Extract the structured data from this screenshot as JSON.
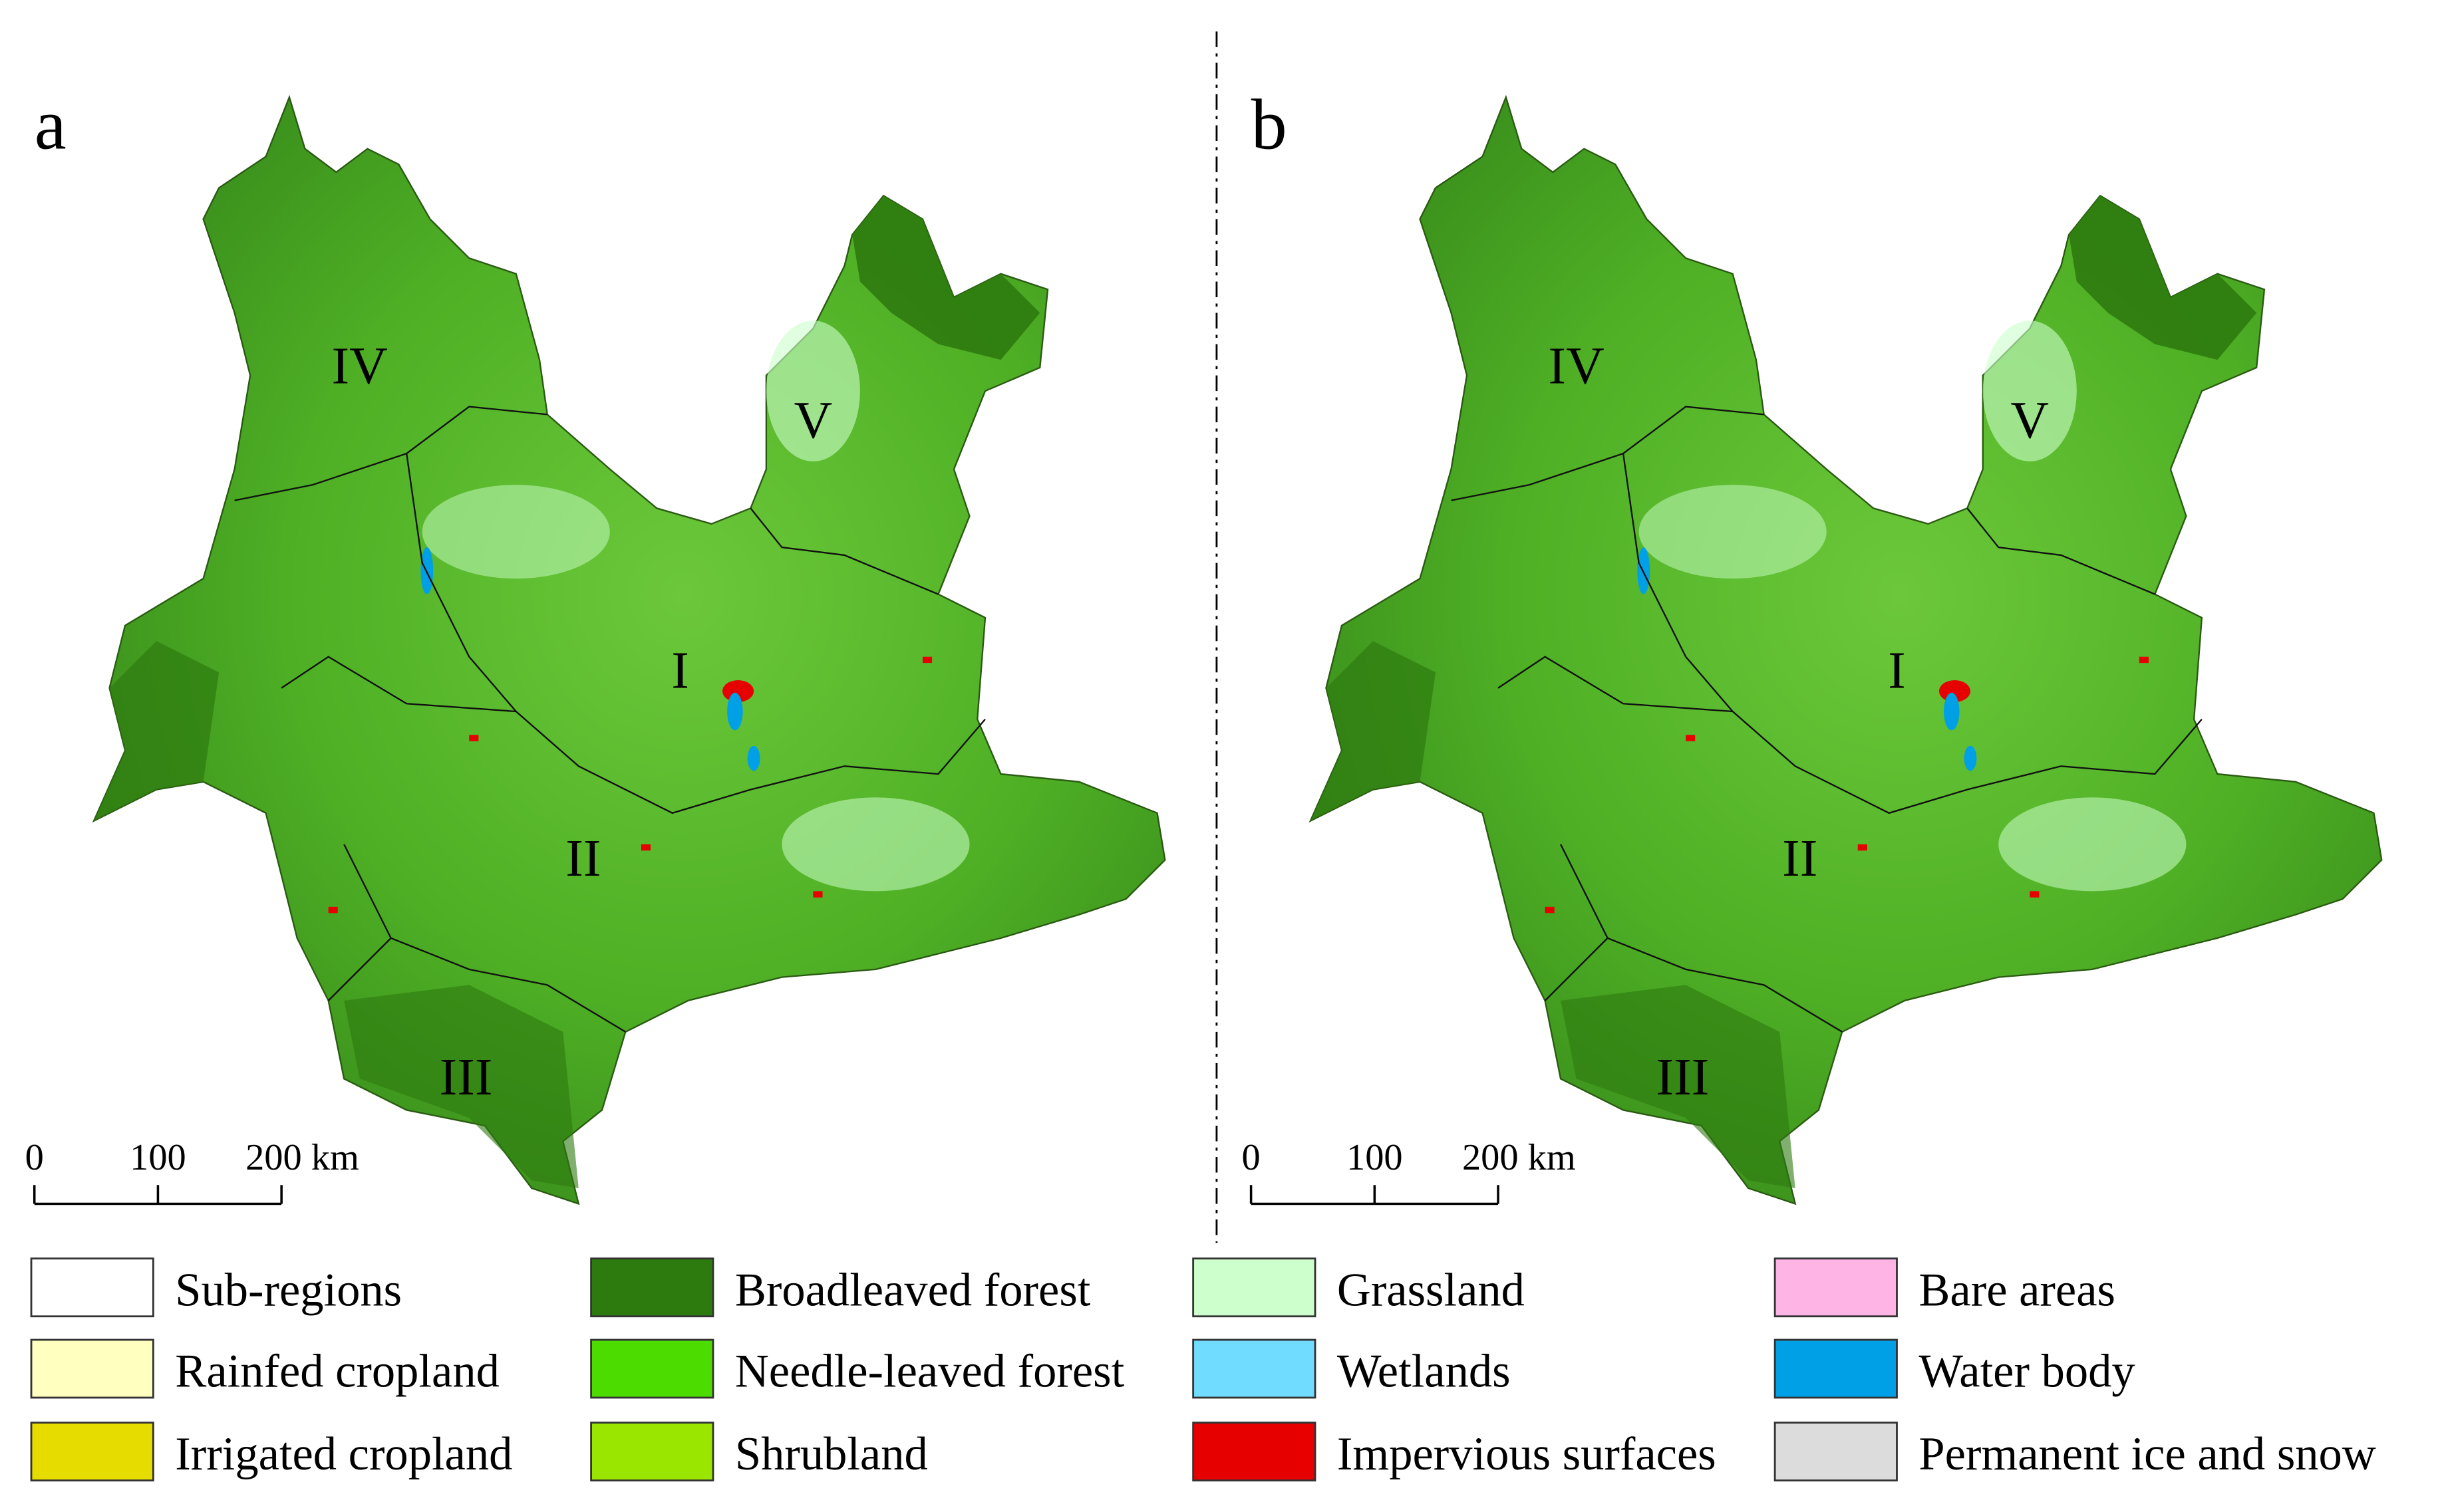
{
  "panels": [
    {
      "label": "a",
      "regions": [
        "IV",
        "V",
        "I",
        "II",
        "III"
      ]
    },
    {
      "label": "b",
      "regions": [
        "IV",
        "V",
        "I",
        "II",
        "III"
      ]
    }
  ],
  "scale_bar": {
    "ticks": [
      "0",
      "100",
      "200 km"
    ]
  },
  "legend": [
    {
      "label": "Sub-regions",
      "color": "#ffffff"
    },
    {
      "label": "Rainfed cropland",
      "color": "#ffffc0"
    },
    {
      "label": "Irrigated cropland",
      "color": "#e6dc00"
    },
    {
      "label": "Broadleaved forest",
      "color": "#2d7a0f"
    },
    {
      "label": "Needle-leaved forest",
      "color": "#4cdc00"
    },
    {
      "label": "Shrubland",
      "color": "#9be600"
    },
    {
      "label": "Grassland",
      "color": "#ccffcc"
    },
    {
      "label": "Wetlands",
      "color": "#70dcff"
    },
    {
      "label": "Impervious surfaces",
      "color": "#e60000"
    },
    {
      "label": "Bare areas",
      "color": "#ffb4e6"
    },
    {
      "label": "Water body",
      "color": "#00a0e6"
    },
    {
      "label": "Permanent ice and snow",
      "color": "#dcdcdc"
    }
  ]
}
